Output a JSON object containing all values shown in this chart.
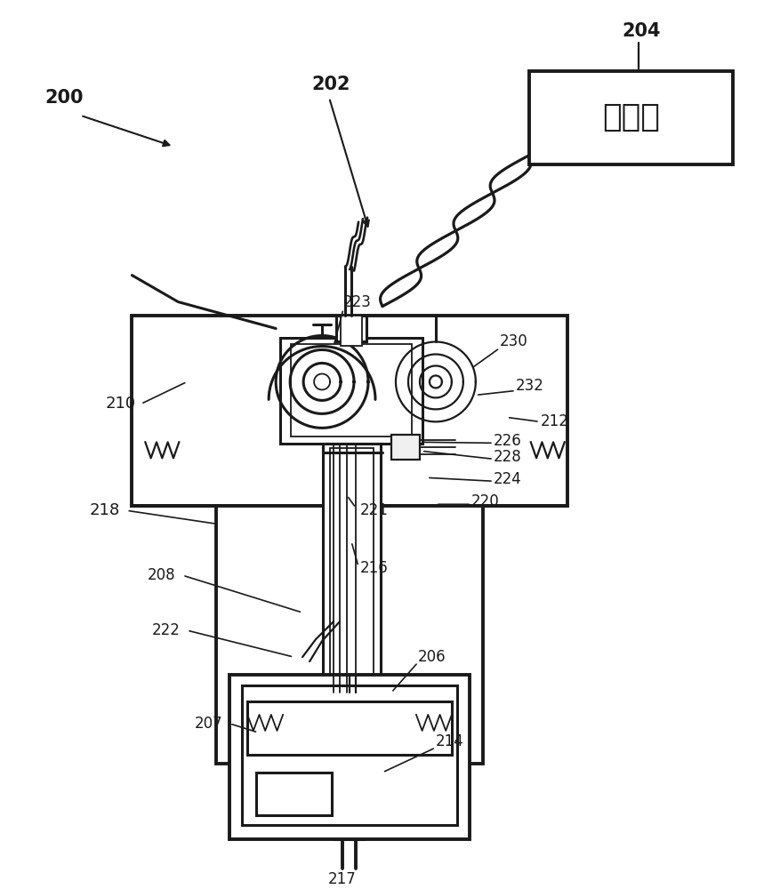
{
  "bg_color": "#ffffff",
  "lc": "#1a1a1a",
  "lw_main": 2.2,
  "lw_thin": 1.3,
  "lw_thick": 2.8,
  "control_room_text": "控制室",
  "label_fontsize": 13,
  "label_bold_fontsize": 15
}
